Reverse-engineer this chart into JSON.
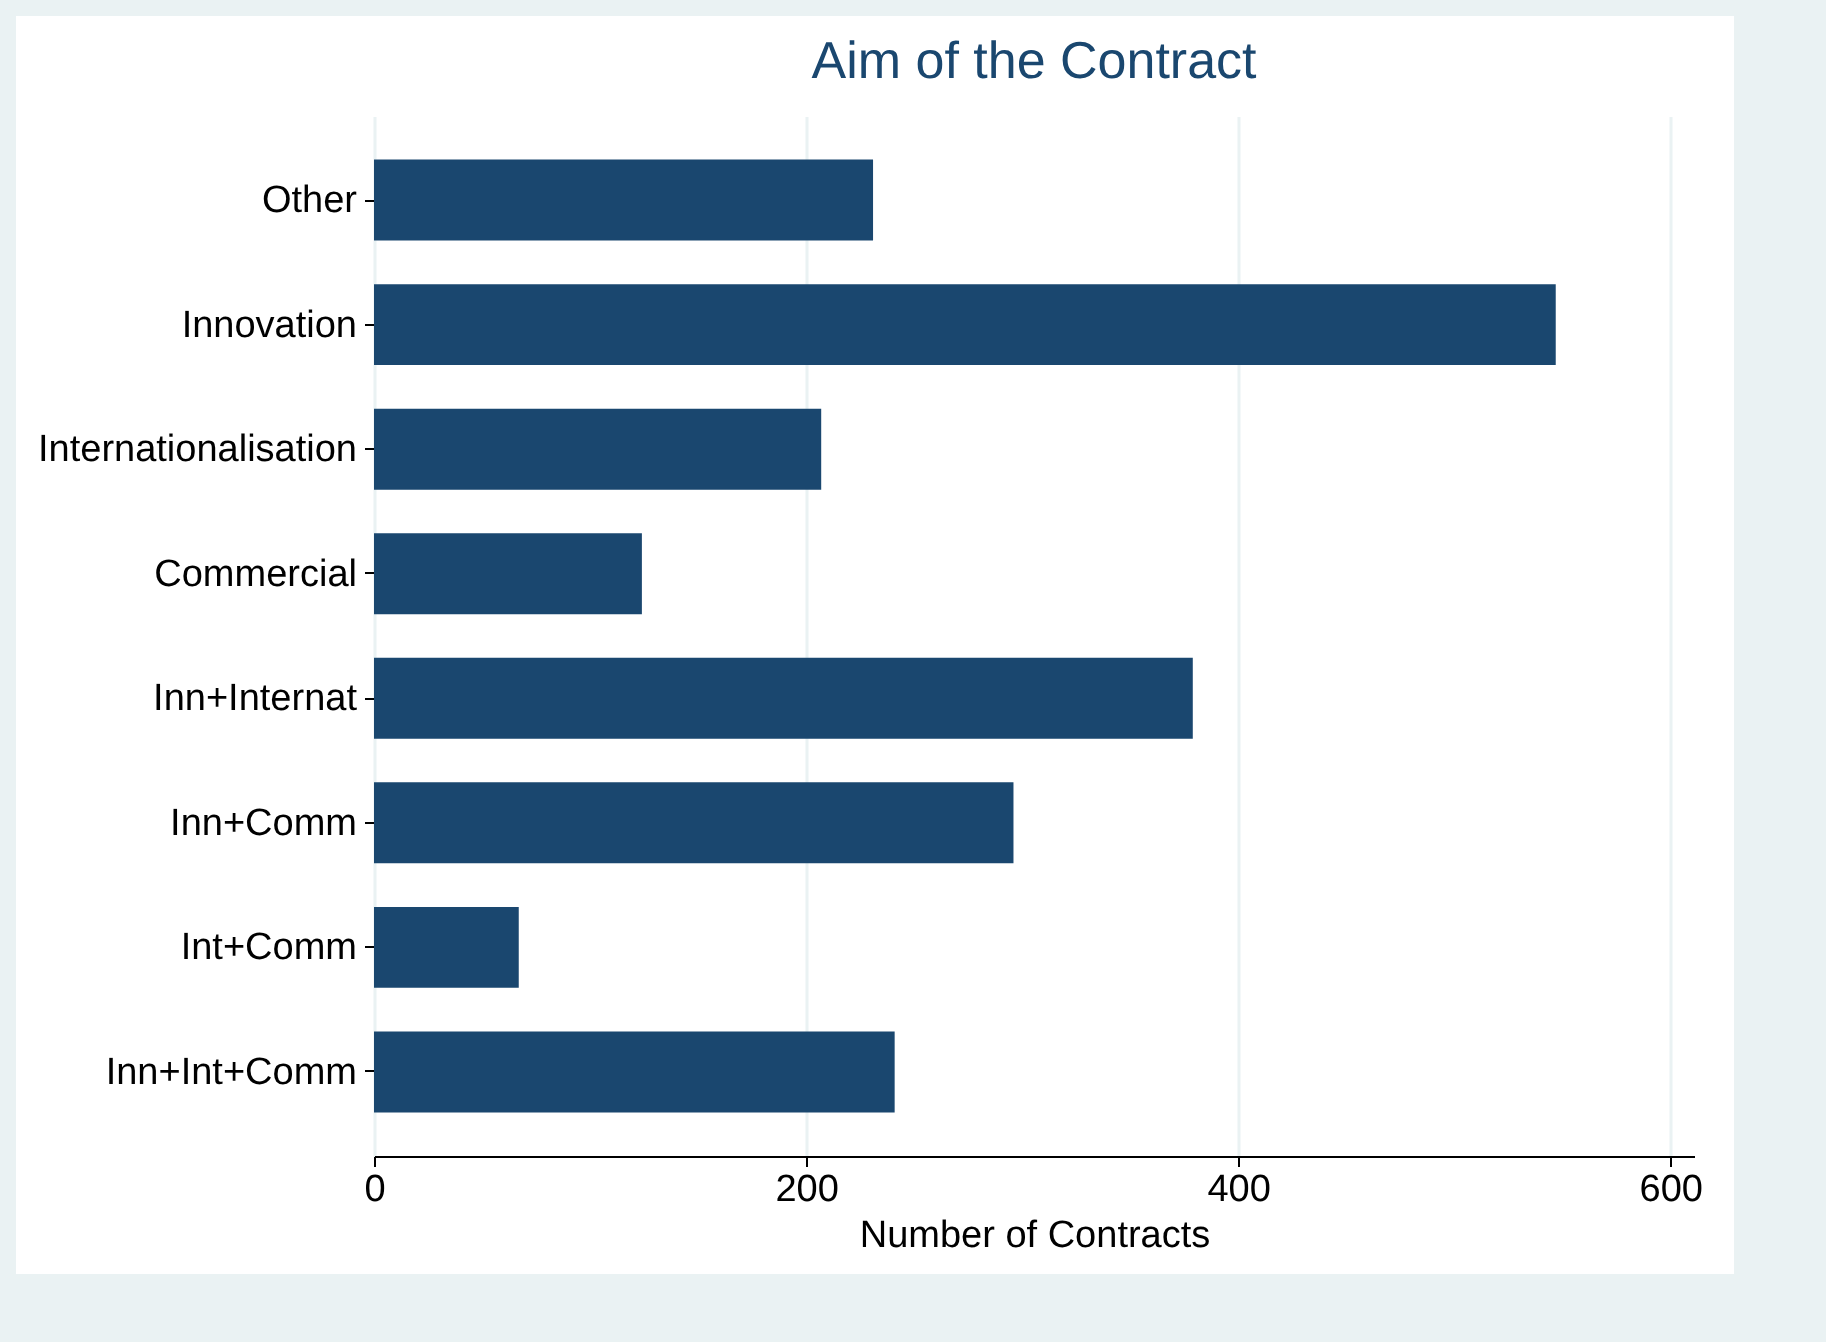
{
  "chart_data": {
    "type": "bar",
    "orientation": "horizontal",
    "title": "Aim of the Contract",
    "xlabel": "Number of Contracts",
    "categories": [
      "Other",
      "Innovation",
      "Internationalisation",
      "Commercial",
      "Inn+Internat",
      "Inn+Comm",
      "Int+Comm",
      "Inn+Int+Comm"
    ],
    "values": [
      231,
      547,
      207,
      124,
      379,
      296,
      67,
      241
    ],
    "color": "#1a476f",
    "xlim": [
      0,
      611
    ],
    "xticks": [
      0,
      200,
      400,
      600
    ],
    "grid": "x"
  }
}
